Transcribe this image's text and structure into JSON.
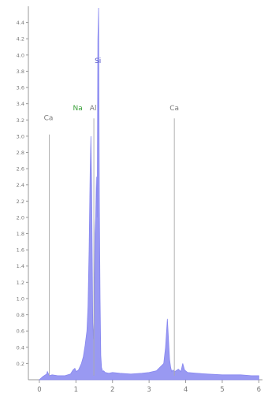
{
  "chart_data": {
    "type": "area",
    "title": "",
    "xlabel": "",
    "ylabel": "",
    "xlim": [
      -0.3,
      6.1
    ],
    "ylim": [
      0,
      4.6
    ],
    "x_ticks": [
      0,
      1,
      2,
      3,
      4,
      5,
      6
    ],
    "x_tick_labels": [
      "0",
      "1",
      "2",
      "3",
      "4",
      "5",
      "6"
    ],
    "y_ticks": [
      0.2,
      0.4,
      0.6,
      0.8,
      1.0,
      1.2,
      1.4,
      1.6,
      1.8,
      2.0,
      2.2,
      2.4,
      2.6,
      2.8,
      3.0,
      3.2,
      3.4,
      3.6,
      3.8,
      4.0,
      4.2,
      4.4
    ],
    "y_tick_labels": [
      "0.2",
      "0.4",
      "0.6",
      "0.8",
      "1.0",
      "1.2",
      "1.4",
      "1.6",
      "1.8",
      "2.0",
      "2.2",
      "2.4",
      "2.6",
      "2.8",
      "3.0",
      "3.2",
      "3.4",
      "3.6",
      "3.8",
      "4.0",
      "4.2",
      "4.4"
    ],
    "series": [
      {
        "color": "#8787f0",
        "x": [
          0.0,
          0.1,
          0.2,
          0.22,
          0.27,
          0.35,
          0.5,
          0.7,
          0.85,
          0.92,
          0.97,
          1.01,
          1.07,
          1.15,
          1.2,
          1.25,
          1.3,
          1.33,
          1.36,
          1.39,
          1.41,
          1.43,
          1.45,
          1.46,
          1.48,
          1.5,
          1.52,
          1.54,
          1.56,
          1.58,
          1.6,
          1.62,
          1.64,
          1.66,
          1.68,
          1.7,
          1.72,
          1.74,
          1.76,
          1.8,
          1.9,
          2.0,
          2.2,
          2.5,
          2.8,
          3.0,
          3.2,
          3.4,
          3.45,
          3.5,
          3.53,
          3.56,
          3.59,
          3.62,
          3.65,
          3.7,
          3.8,
          3.87,
          3.92,
          3.97,
          4.05,
          4.3,
          4.6,
          5.0,
          5.5,
          5.8,
          6.0
        ],
        "y": [
          0,
          0.04,
          0.07,
          0.1,
          0.05,
          0.06,
          0.05,
          0.05,
          0.07,
          0.12,
          0.14,
          0.1,
          0.12,
          0.2,
          0.28,
          0.42,
          0.6,
          0.9,
          1.6,
          2.6,
          3.0,
          2.4,
          1.3,
          0.7,
          0.5,
          0.9,
          1.8,
          2.0,
          2.5,
          2.0,
          4.2,
          4.58,
          2.2,
          1.0,
          0.3,
          0.15,
          0.12,
          0.1,
          0.11,
          0.09,
          0.08,
          0.09,
          0.08,
          0.07,
          0.08,
          0.09,
          0.11,
          0.2,
          0.4,
          0.75,
          0.5,
          0.25,
          0.15,
          0.1,
          0.12,
          0.1,
          0.13,
          0.1,
          0.2,
          0.12,
          0.09,
          0.08,
          0.07,
          0.06,
          0.06,
          0.05,
          0.05
        ]
      }
    ],
    "peak_labels": [
      {
        "text": "Si",
        "x": 1.6,
        "y": 3.9,
        "line": false,
        "color": "#5050c8"
      },
      {
        "text": "Ca",
        "x": 0.25,
        "y": 3.2,
        "line": true,
        "line_x": 0.27,
        "line_y": 3.02,
        "color": "#7a7a7a"
      },
      {
        "text": "Na",
        "x": 1.05,
        "y": 3.32,
        "line": false,
        "color": "#3aa03a"
      },
      {
        "text": "Al",
        "x": 1.47,
        "y": 3.32,
        "line": true,
        "line_x": 1.49,
        "line_y": 3.22,
        "color": "#7a7a7a"
      },
      {
        "text": "Ca",
        "x": 3.69,
        "y": 3.32,
        "line": true,
        "line_x": 3.69,
        "line_y": 3.22,
        "color": "#7a7a7a"
      }
    ],
    "grid": false,
    "legend": "none"
  }
}
